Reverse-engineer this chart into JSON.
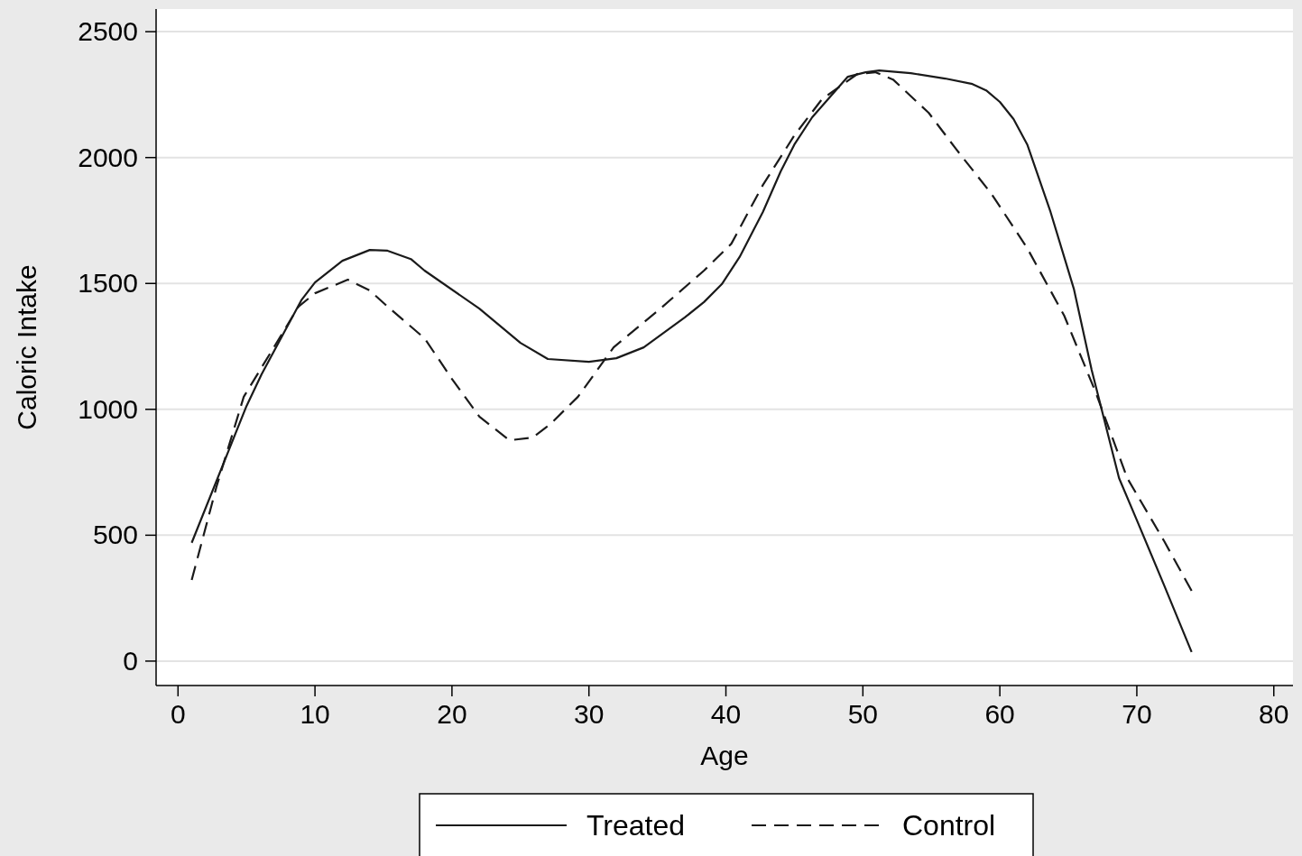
{
  "chart_data": {
    "type": "line",
    "xlabel": "Age",
    "ylabel": "Caloric Intake",
    "xlim": [
      -1.6,
      81.4
    ],
    "ylim": [
      -97,
      2590
    ],
    "xticks": [
      0,
      10,
      20,
      30,
      40,
      50,
      60,
      70,
      80
    ],
    "yticks": [
      0,
      500,
      1000,
      1500,
      2000,
      2500
    ],
    "grid": "y",
    "legend": "bottom",
    "marker": "none",
    "series": [
      {
        "name": "Treated",
        "color": "#1a1a1a",
        "line_style": "solid",
        "x": [
          1,
          5,
          6.1,
          9,
          10,
          12,
          14,
          15.3,
          17,
          18,
          22,
          25,
          27,
          30,
          32,
          34,
          37,
          38.4,
          39.7,
          41,
          42.7,
          44,
          45,
          46.3,
          48.9,
          50.2,
          51.2,
          53.5,
          56,
          58,
          59,
          60,
          61,
          62,
          63.7,
          65.4,
          66.7,
          68.7,
          70,
          72,
          74
        ],
        "values": [
          470,
          1013,
          1139,
          1433,
          1504,
          1590,
          1633,
          1630,
          1597,
          1551,
          1400,
          1264,
          1200,
          1189,
          1203,
          1246,
          1365,
          1426,
          1497,
          1605,
          1784,
          1945,
          2052,
          2160,
          2321,
          2339,
          2346,
          2335,
          2314,
          2292,
          2267,
          2221,
          2153,
          2052,
          1784,
          1479,
          1157,
          727,
          560,
          300,
          36
        ]
      },
      {
        "name": "Control",
        "color": "#1a1a1a",
        "line_style": "dashed",
        "x": [
          1,
          2.8,
          4.8,
          6,
          8.8,
          10,
          12.4,
          14,
          15.3,
          18,
          20,
          22,
          24.2,
          25.9,
          27.2,
          29.2,
          31.8,
          35,
          38.4,
          40.4,
          42.7,
          45,
          47,
          49.6,
          50.9,
          52.2,
          54.8,
          56.8,
          59.4,
          62,
          64.7,
          67,
          69.3,
          72,
          74
        ],
        "values": [
          322,
          691,
          1050,
          1157,
          1408,
          1461,
          1515,
          1472,
          1408,
          1282,
          1121,
          971,
          877,
          888,
          942,
          1050,
          1246,
          1390,
          1551,
          1658,
          1891,
          2088,
          2231,
          2332,
          2339,
          2310,
          2178,
          2034,
          1855,
          1640,
          1372,
          1067,
          727,
          476,
          279
        ]
      }
    ]
  }
}
